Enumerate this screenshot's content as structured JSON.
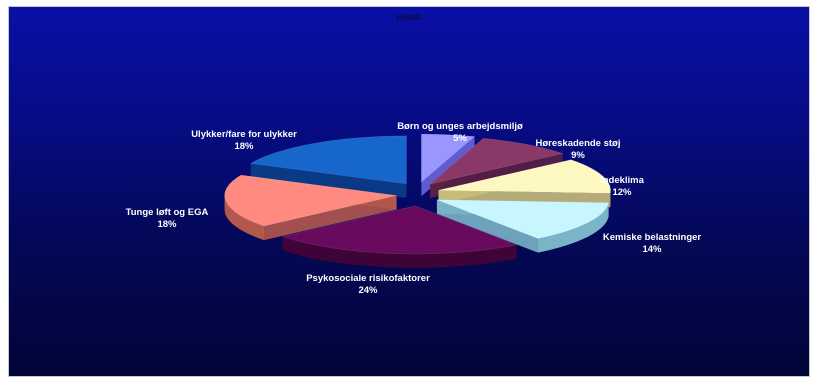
{
  "chart_data": {
    "type": "pie",
    "title": "Hotels",
    "unit": "%",
    "slices": [
      {
        "label": "Børn og unges arbejdsmiljø",
        "value": 5,
        "value_label": "5%",
        "color": "#9a96ff",
        "side": "#6b64d8"
      },
      {
        "label": "Høreskadende støj",
        "value": 9,
        "value_label": "9%",
        "color": "#8a3868",
        "side": "#5c1f44"
      },
      {
        "label": "Indeklima",
        "value": 12,
        "value_label": "12%",
        "color": "#fdf8c2",
        "side": "#c8be7a"
      },
      {
        "label": "Kemiske belastninger",
        "value": 14,
        "value_label": "14%",
        "color": "#c8f6ff",
        "side": "#7ab4c8"
      },
      {
        "label": "Psykosociale risikofaktorer",
        "value": 24,
        "value_label": "24%",
        "color": "#6a0a5e",
        "side": "#3e0438"
      },
      {
        "label": "Tunge løft og EGA",
        "value": 18,
        "value_label": "18%",
        "color": "#ff8a80",
        "side": "#b4584e"
      },
      {
        "label": "Ulykker/fare for ulykker",
        "value": 18,
        "value_label": "18%",
        "color": "#1666cc",
        "side": "#0b3e88"
      }
    ],
    "style": "3d-exploded",
    "legend": "none"
  }
}
